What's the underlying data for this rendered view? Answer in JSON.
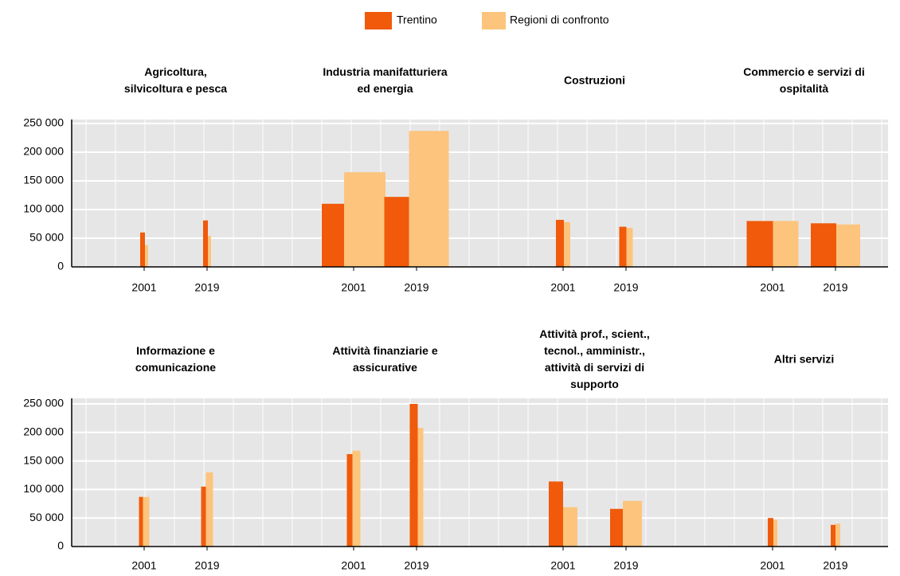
{
  "chart_data": {
    "type": "bar",
    "series": [
      {
        "name": "Trentino",
        "color": "#f05a0a"
      },
      {
        "name": "Regioni di confronto",
        "color": "#fdc47d"
      }
    ],
    "categories": [
      "2001",
      "2019"
    ],
    "ylim": [
      0,
      250000
    ],
    "yticks": [
      0,
      {
        "value": 50000,
        "label": "50 000"
      },
      {
        "value": 100000,
        "label": "100 000"
      },
      {
        "value": 150000,
        "label": "150 000"
      },
      {
        "value": 200000,
        "label": "200 000"
      },
      {
        "value": 250000,
        "label": "250 000"
      }
    ],
    "grid": true,
    "panels": [
      {
        "title": [
          "Agricoltura,",
          "silvicoltura e pesca"
        ],
        "values": [
          [
            60000,
            81000
          ],
          [
            38000,
            54000
          ]
        ]
      },
      {
        "title": [
          "Industria manifatturiera",
          "ed energia"
        ],
        "values": [
          [
            110000,
            122000
          ],
          [
            165000,
            237000
          ]
        ]
      },
      {
        "title": [
          "Costruzioni"
        ],
        "values": [
          [
            82000,
            70000
          ],
          [
            78000,
            68000
          ]
        ]
      },
      {
        "title": [
          "Commercio e servizi di",
          "ospitalità"
        ],
        "values": [
          [
            80000,
            76000
          ],
          [
            80000,
            74000
          ]
        ]
      },
      {
        "title": [
          "Informazione e",
          "comunicazione"
        ],
        "values": [
          [
            87000,
            105000
          ],
          [
            87000,
            130000
          ]
        ]
      },
      {
        "title": [
          "Attività finanziarie e",
          "assicurative"
        ],
        "values": [
          [
            162000,
            250000
          ],
          [
            168000,
            208000
          ]
        ]
      },
      {
        "title": [
          "Attività prof., scient.,",
          "tecnol., amministr.,",
          "attività di servizi di",
          "supporto"
        ],
        "values": [
          [
            114000,
            66000
          ],
          [
            69000,
            80000
          ]
        ]
      },
      {
        "title": [
          "Altri servizi"
        ],
        "values": [
          [
            50000,
            38000
          ],
          [
            47000,
            40000
          ]
        ]
      }
    ]
  }
}
